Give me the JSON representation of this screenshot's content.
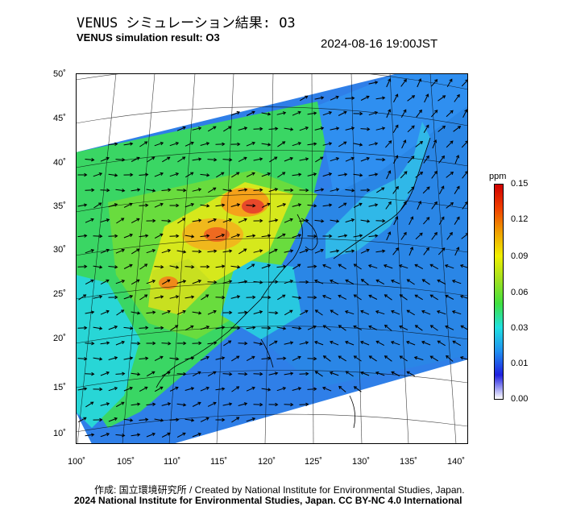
{
  "header": {
    "title_ja": "VENUS シミュレーション結果: O3",
    "title_en": "VENUS simulation result: O3",
    "timestamp": "2024-08-16 19:00JST"
  },
  "map": {
    "lat_labels": [
      "50˚",
      "45˚",
      "40˚",
      "35˚",
      "30˚",
      "25˚",
      "20˚",
      "15˚",
      "10˚"
    ],
    "lon_labels": [
      "100˚",
      "105˚",
      "110˚",
      "115˚",
      "120˚",
      "125˚",
      "130˚",
      "135˚",
      "140˚"
    ]
  },
  "colorbar": {
    "unit": "ppm",
    "ticks": [
      "0.15",
      "0.12",
      "0.09",
      "0.06",
      "0.03",
      "0.01",
      "0.00"
    ],
    "colors": [
      "#ffffff",
      "#2020e0",
      "#2090f0",
      "#20e0e0",
      "#40e040",
      "#a0e020",
      "#f0f000",
      "#f0a000",
      "#f04000",
      "#d00000"
    ]
  },
  "footer": {
    "credit": "作成: 国立環境研究所 / Created by National Institute for Environmental Studies, Japan.",
    "copyright": "2024 National Institute for Environmental Studies, Japan. CC BY-NC 4.0 International"
  }
}
